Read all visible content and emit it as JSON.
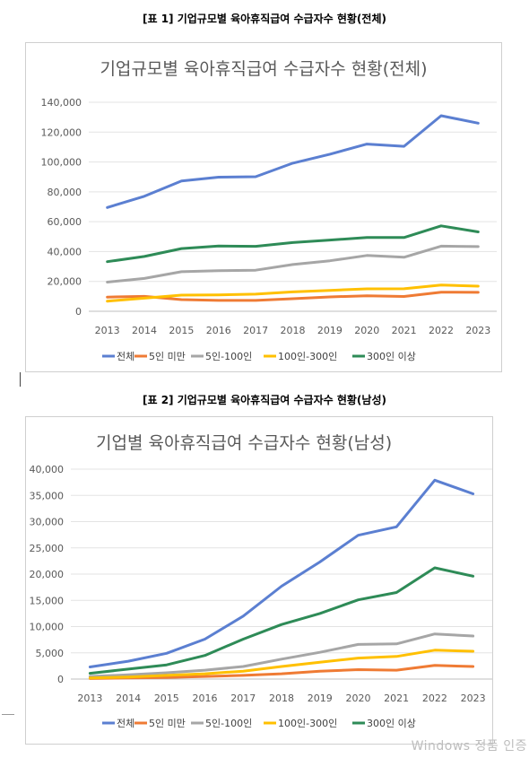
{
  "captions": [
    "[표 1] 기업규모별  육아휴직급여 수급자수 현황(전체)",
    "[표 2] 기업규모별  육아휴직급여 수급자수 현황(남성)"
  ],
  "colors": {
    "total": "#5b7fd1",
    "under5": "#ef7b34",
    "5to100": "#a6a6a6",
    "100to300": "#ffc000",
    "over300": "#2e8b57"
  },
  "watermark": "Windows 정품 인증",
  "chart_data": [
    {
      "type": "line",
      "title": "기업규모별 육아휴직급여 수급자수 현황(전체)",
      "xlabel": "",
      "ylabel": "",
      "categories": [
        "2013",
        "2014",
        "2015",
        "2016",
        "2017",
        "2018",
        "2019",
        "2020",
        "2021",
        "2022",
        "2023"
      ],
      "ylim": [
        0,
        140000
      ],
      "yticks": [
        0,
        20000,
        40000,
        60000,
        80000,
        100000,
        120000,
        140000
      ],
      "ytick_labels": [
        "0",
        "20,000",
        "40,000",
        "60,000",
        "80,000",
        "100,000",
        "120,000",
        "140,000"
      ],
      "grid": true,
      "legend": "bottom",
      "series": [
        {
          "name": "전체",
          "color": "#5b7fd1",
          "values": [
            69500,
            77000,
            87300,
            89800,
            90100,
            99200,
            105200,
            112000,
            110500,
            131000,
            126000
          ]
        },
        {
          "name": "5인 미만",
          "color": "#ef7b34",
          "values": [
            9500,
            10000,
            7800,
            7300,
            7300,
            8400,
            9600,
            10400,
            9900,
            12800,
            12700
          ]
        },
        {
          "name": "5인-100인",
          "color": "#a6a6a6",
          "values": [
            19500,
            22000,
            26500,
            27200,
            27500,
            31300,
            33800,
            37400,
            36200,
            43600,
            43300
          ]
        },
        {
          "name": "100인-300인",
          "color": "#ffc000",
          "values": [
            6800,
            8800,
            10800,
            11000,
            11500,
            13000,
            14000,
            15000,
            15100,
            17600,
            16800
          ]
        },
        {
          "name": "300인 이상",
          "color": "#2e8b57",
          "values": [
            33200,
            36700,
            42000,
            43700,
            43500,
            46000,
            47700,
            49400,
            49400,
            57200,
            53200
          ]
        }
      ]
    },
    {
      "type": "line",
      "title": "기업별 육아휴직급여 수급자수 현황(남성)",
      "xlabel": "",
      "ylabel": "",
      "categories": [
        "2013",
        "2014",
        "2015",
        "2016",
        "2017",
        "2018",
        "2019",
        "2020",
        "2021",
        "2022",
        "2023"
      ],
      "ylim": [
        0,
        40000
      ],
      "yticks": [
        0,
        5000,
        10000,
        15000,
        20000,
        25000,
        30000,
        35000,
        40000
      ],
      "ytick_labels": [
        "0",
        "5,000",
        "10,000",
        "15,000",
        "20,000",
        "25,000",
        "30,000",
        "35,000",
        "40,000"
      ],
      "grid": true,
      "legend": "bottom",
      "series": [
        {
          "name": "전체",
          "color": "#5b7fd1",
          "values": [
            2300,
            3400,
            4900,
            7600,
            12000,
            17700,
            22300,
            27400,
            29000,
            37900,
            35300
          ]
        },
        {
          "name": "5인 미만",
          "color": "#ef7b34",
          "values": [
            100,
            200,
            300,
            500,
            700,
            1000,
            1500,
            1800,
            1700,
            2600,
            2400
          ]
        },
        {
          "name": "5인-100인",
          "color": "#a6a6a6",
          "values": [
            500,
            800,
            1200,
            1700,
            2400,
            3800,
            5100,
            6600,
            6700,
            8600,
            8200
          ]
        },
        {
          "name": "100인-300인",
          "color": "#ffc000",
          "values": [
            200,
            400,
            700,
            1000,
            1500,
            2400,
            3200,
            4000,
            4300,
            5500,
            5300
          ]
        },
        {
          "name": "300인 이상",
          "color": "#2e8b57",
          "values": [
            1100,
            1900,
            2700,
            4500,
            7600,
            10400,
            12500,
            15100,
            16500,
            21200,
            19600
          ]
        }
      ]
    }
  ]
}
